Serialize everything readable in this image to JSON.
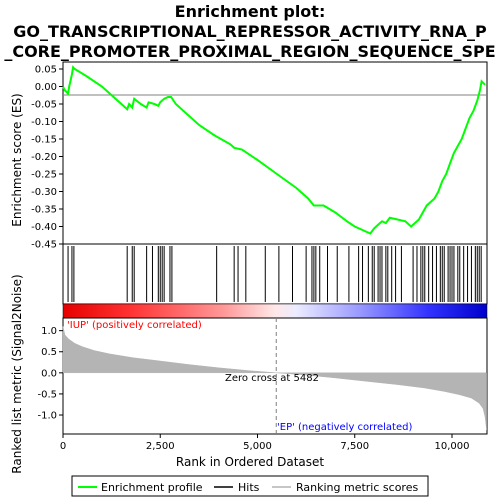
{
  "title_lines": [
    "Enrichment plot:",
    "GO_TRANSCRIPTIONAL_REPRESSOR_ACTIVITY_RNA_P",
    "_CORE_PROMOTER_PROXIMAL_REGION_SEQUENCE_SPE"
  ],
  "colors": {
    "enrichment_line": "#00ff00",
    "hits": "#000000",
    "ranking_fill": "#b4b4b4",
    "positive_color": "#ff0000",
    "negative_color": "#0000ff",
    "zero_line": "#808080"
  },
  "chart_data": [
    {
      "type": "line",
      "name": "enrichment_profile",
      "ylabel": "Enrichment score (ES)",
      "xlim": [
        0,
        10900
      ],
      "ylim": [
        -0.45,
        0.07
      ],
      "yticks": [
        0.05,
        0.0,
        -0.05,
        -0.1,
        -0.15,
        -0.2,
        -0.25,
        -0.3,
        -0.35,
        -0.4,
        -0.45
      ],
      "ytick_labels": [
        "0.05",
        "0.00",
        "-0.05",
        "-0.10",
        "-0.15",
        "-0.20",
        "-0.25",
        "-0.30",
        "-0.35",
        "-0.40",
        "-0.45"
      ],
      "points": [
        [
          0,
          0.0
        ],
        [
          40,
          -0.01
        ],
        [
          130,
          -0.02
        ],
        [
          160,
          0.0
        ],
        [
          200,
          0.02
        ],
        [
          230,
          0.035
        ],
        [
          260,
          0.055
        ],
        [
          300,
          0.05
        ],
        [
          600,
          0.03
        ],
        [
          1000,
          0.0
        ],
        [
          1400,
          -0.04
        ],
        [
          1650,
          -0.065
        ],
        [
          1700,
          -0.05
        ],
        [
          1780,
          -0.06
        ],
        [
          1830,
          -0.035
        ],
        [
          2000,
          -0.05
        ],
        [
          2150,
          -0.06
        ],
        [
          2200,
          -0.045
        ],
        [
          2350,
          -0.05
        ],
        [
          2450,
          -0.055
        ],
        [
          2500,
          -0.045
        ],
        [
          2600,
          -0.035
        ],
        [
          2700,
          -0.03
        ],
        [
          2780,
          -0.03
        ],
        [
          2900,
          -0.05
        ],
        [
          3500,
          -0.11
        ],
        [
          3900,
          -0.14
        ],
        [
          4300,
          -0.165
        ],
        [
          4400,
          -0.175
        ],
        [
          4600,
          -0.18
        ],
        [
          5000,
          -0.21
        ],
        [
          5500,
          -0.25
        ],
        [
          6000,
          -0.29
        ],
        [
          6300,
          -0.32
        ],
        [
          6450,
          -0.34
        ],
        [
          6700,
          -0.34
        ],
        [
          7000,
          -0.36
        ],
        [
          7300,
          -0.385
        ],
        [
          7500,
          -0.4
        ],
        [
          7700,
          -0.41
        ],
        [
          7900,
          -0.42
        ],
        [
          8000,
          -0.405
        ],
        [
          8100,
          -0.395
        ],
        [
          8200,
          -0.385
        ],
        [
          8300,
          -0.39
        ],
        [
          8400,
          -0.375
        ],
        [
          8600,
          -0.38
        ],
        [
          8800,
          -0.385
        ],
        [
          8950,
          -0.4
        ],
        [
          9050,
          -0.39
        ],
        [
          9150,
          -0.38
        ],
        [
          9250,
          -0.36
        ],
        [
          9350,
          -0.34
        ],
        [
          9450,
          -0.33
        ],
        [
          9550,
          -0.32
        ],
        [
          9650,
          -0.3
        ],
        [
          9750,
          -0.27
        ],
        [
          9850,
          -0.25
        ],
        [
          9950,
          -0.22
        ],
        [
          10050,
          -0.19
        ],
        [
          10150,
          -0.17
        ],
        [
          10250,
          -0.15
        ],
        [
          10350,
          -0.12
        ],
        [
          10450,
          -0.09
        ],
        [
          10550,
          -0.07
        ],
        [
          10650,
          -0.04
        ],
        [
          10720,
          -0.01
        ],
        [
          10760,
          0.015
        ],
        [
          10850,
          0.005
        ]
      ]
    },
    {
      "type": "scatter",
      "name": "hits",
      "x": [
        130,
        230,
        280,
        1650,
        1780,
        1830,
        2150,
        2300,
        2450,
        2500,
        2550,
        2600,
        2750,
        2800,
        3950,
        4400,
        4500,
        4700,
        5200,
        5550,
        5900,
        6250,
        6400,
        6450,
        6500,
        6600,
        6800,
        7050,
        7350,
        7600,
        7700,
        7850,
        7950,
        8000,
        8100,
        8150,
        8200,
        8300,
        8350,
        8450,
        8550,
        8700,
        9000,
        9100,
        9200,
        9250,
        9300,
        9400,
        9500,
        9600,
        9700,
        9750,
        9800,
        9900,
        9950,
        10000,
        10050,
        10150,
        10200,
        10300,
        10400,
        10500,
        10600,
        10650,
        10700,
        10750
      ]
    },
    {
      "type": "area",
      "name": "ranking_metric",
      "ylabel": "Ranked list metric (Signal2Noise)",
      "xlabel": "Rank in Ordered Dataset",
      "xlim": [
        0,
        10900
      ],
      "ylim": [
        -1.45,
        1.3
      ],
      "yticks": [
        1.0,
        0.5,
        0.0,
        -0.5,
        -1.0
      ],
      "ytick_labels": [
        "1.0",
        "0.5",
        "0.0",
        "-0.5",
        "-1.0"
      ],
      "xticks": [
        0,
        2500,
        5000,
        7500,
        10000
      ],
      "xtick_labels": [
        "0",
        "2,500",
        "5,000",
        "7,500",
        "10,000"
      ],
      "x": [
        0,
        50,
        150,
        300,
        500,
        800,
        1200,
        1800,
        2500,
        3200,
        4000,
        4800,
        5482,
        6200,
        7000,
        7800,
        8600,
        9300,
        9800,
        10200,
        10500,
        10700,
        10800,
        10850,
        10890
      ],
      "values": [
        1.1,
        0.9,
        0.8,
        0.7,
        0.62,
        0.53,
        0.45,
        0.36,
        0.28,
        0.2,
        0.12,
        0.05,
        0.0,
        -0.05,
        -0.12,
        -0.2,
        -0.28,
        -0.36,
        -0.44,
        -0.52,
        -0.6,
        -0.72,
        -0.85,
        -1.05,
        -1.35
      ],
      "zero_cross": 5482
    }
  ],
  "annotations": {
    "positive_label": "'IUP' (positively correlated)",
    "negative_label": "'EP' (negatively correlated)",
    "zero_cross_label": "Zero cross at 5482"
  },
  "legend": {
    "items": [
      "Enrichment profile",
      "Hits",
      "Ranking metric scores"
    ]
  }
}
